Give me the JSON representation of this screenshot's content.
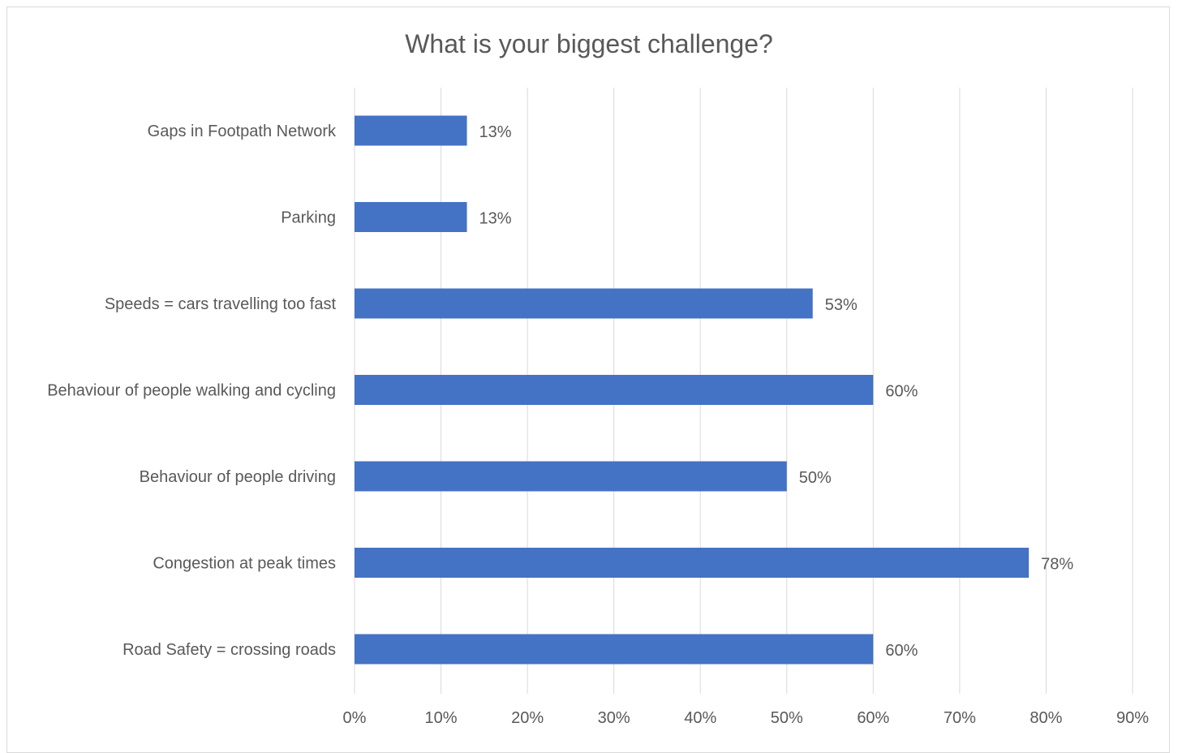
{
  "chart_data": {
    "type": "bar",
    "orientation": "horizontal",
    "title": "What is your biggest challenge?",
    "categories": [
      "Gaps in Footpath Network",
      "Parking",
      "Speeds = cars travelling too fast",
      "Behaviour of people walking and cycling",
      "Behaviour of people driving",
      "Congestion at peak times",
      "Road Safety = crossing roads"
    ],
    "values": [
      13,
      13,
      53,
      60,
      50,
      78,
      60
    ],
    "value_labels": [
      "13%",
      "13%",
      "53%",
      "60%",
      "50%",
      "78%",
      "60%"
    ],
    "xlim": [
      0,
      90
    ],
    "x_ticks": [
      0,
      10,
      20,
      30,
      40,
      50,
      60,
      70,
      80,
      90
    ],
    "x_tick_labels": [
      "0%",
      "10%",
      "20%",
      "30%",
      "40%",
      "50%",
      "60%",
      "70%",
      "80%",
      "90%"
    ],
    "xlabel": "",
    "ylabel": "",
    "grid": "vertical",
    "legend": "none",
    "colors": {
      "bar": "#4472c4",
      "grid": "#d9d9d9",
      "text": "#595959",
      "title": "#595959"
    }
  }
}
